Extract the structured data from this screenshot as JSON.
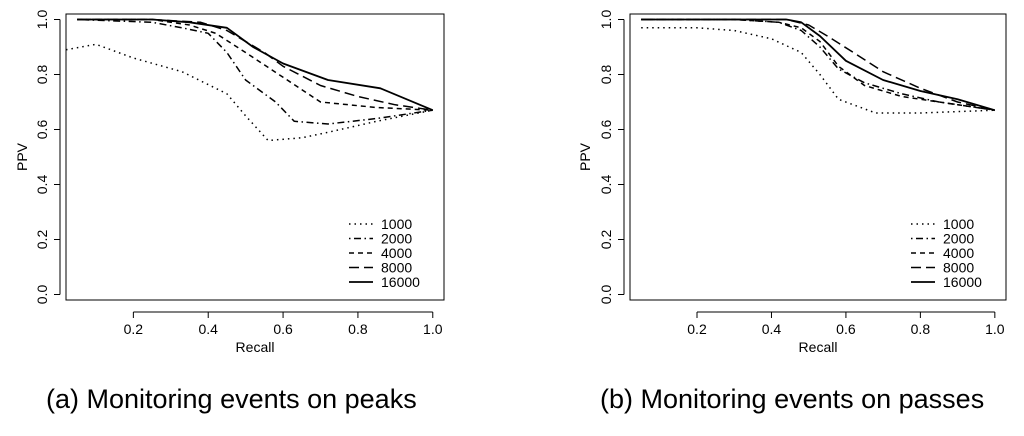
{
  "chart_data": [
    {
      "type": "line",
      "panel": "a",
      "caption": "(a) Monitoring events on peaks",
      "xlabel": "Recall",
      "ylabel": "PPV",
      "xlim": [
        0.02,
        1.03
      ],
      "ylim": [
        -0.02,
        1.02
      ],
      "xticks": [
        0.2,
        0.4,
        0.6,
        0.8,
        1.0
      ],
      "xtick_labels": [
        "0.2",
        "0.4",
        "0.6",
        "0.8",
        "1.0"
      ],
      "yticks": [
        0.0,
        0.2,
        0.4,
        0.6,
        0.8,
        1.0
      ],
      "ytick_labels": [
        "0.0",
        "0.2",
        "0.4",
        "0.6",
        "0.8",
        "1.0"
      ],
      "legend_position": "bottom-right",
      "series": [
        {
          "name": "1000",
          "style": "dotted",
          "x": [
            0.02,
            0.1,
            0.2,
            0.33,
            0.45,
            0.5,
            0.56,
            0.65,
            0.72,
            0.85,
            1.0
          ],
          "y": [
            0.89,
            0.91,
            0.86,
            0.81,
            0.73,
            0.65,
            0.56,
            0.57,
            0.59,
            0.63,
            0.67
          ]
        },
        {
          "name": "2000",
          "style": "dotdash",
          "x": [
            0.05,
            0.25,
            0.33,
            0.4,
            0.45,
            0.5,
            0.58,
            0.63,
            0.72,
            0.85,
            1.0
          ],
          "y": [
            1.0,
            0.99,
            0.97,
            0.95,
            0.88,
            0.78,
            0.7,
            0.63,
            0.62,
            0.64,
            0.67
          ]
        },
        {
          "name": "4000",
          "style": "dashed",
          "x": [
            0.05,
            0.25,
            0.35,
            0.42,
            0.5,
            0.6,
            0.7,
            0.85,
            1.0
          ],
          "y": [
            1.0,
            1.0,
            0.98,
            0.95,
            0.88,
            0.79,
            0.7,
            0.68,
            0.67
          ]
        },
        {
          "name": "8000",
          "style": "longdash",
          "x": [
            0.05,
            0.25,
            0.38,
            0.45,
            0.55,
            0.6,
            0.7,
            0.8,
            0.9,
            1.0
          ],
          "y": [
            1.0,
            1.0,
            0.99,
            0.96,
            0.88,
            0.83,
            0.76,
            0.72,
            0.69,
            0.67
          ]
        },
        {
          "name": "16000",
          "style": "solid",
          "x": [
            0.05,
            0.25,
            0.35,
            0.45,
            0.52,
            0.6,
            0.72,
            0.86,
            1.0
          ],
          "y": [
            1.0,
            1.0,
            0.99,
            0.97,
            0.9,
            0.84,
            0.78,
            0.75,
            0.67
          ]
        }
      ]
    },
    {
      "type": "line",
      "panel": "b",
      "caption": "(b) Monitoring events on passes",
      "xlabel": "Recall",
      "ylabel": "PPV",
      "xlim": [
        0.02,
        1.03
      ],
      "ylim": [
        -0.02,
        1.02
      ],
      "xticks": [
        0.2,
        0.4,
        0.6,
        0.8,
        1.0
      ],
      "xtick_labels": [
        "0.2",
        "0.4",
        "0.6",
        "0.8",
        "1.0"
      ],
      "yticks": [
        0.0,
        0.2,
        0.4,
        0.6,
        0.8,
        1.0
      ],
      "ytick_labels": [
        "0.0",
        "0.2",
        "0.4",
        "0.6",
        "0.8",
        "1.0"
      ],
      "legend_position": "bottom-right",
      "series": [
        {
          "name": "1000",
          "style": "dotted",
          "x": [
            0.05,
            0.2,
            0.3,
            0.4,
            0.48,
            0.53,
            0.58,
            0.68,
            0.8,
            1.0
          ],
          "y": [
            0.97,
            0.97,
            0.96,
            0.93,
            0.88,
            0.8,
            0.71,
            0.66,
            0.66,
            0.67
          ]
        },
        {
          "name": "2000",
          "style": "dotdash",
          "x": [
            0.05,
            0.3,
            0.42,
            0.48,
            0.53,
            0.58,
            0.65,
            0.75,
            0.85,
            1.0
          ],
          "y": [
            1.0,
            1.0,
            0.99,
            0.96,
            0.9,
            0.82,
            0.77,
            0.73,
            0.7,
            0.67
          ]
        },
        {
          "name": "4000",
          "style": "dashed",
          "x": [
            0.05,
            0.3,
            0.42,
            0.48,
            0.53,
            0.58,
            0.65,
            0.75,
            0.85,
            1.0
          ],
          "y": [
            1.0,
            1.0,
            0.99,
            0.97,
            0.92,
            0.83,
            0.76,
            0.72,
            0.7,
            0.67
          ]
        },
        {
          "name": "8000",
          "style": "longdash",
          "x": [
            0.05,
            0.3,
            0.44,
            0.5,
            0.55,
            0.62,
            0.7,
            0.8,
            0.9,
            1.0
          ],
          "y": [
            1.0,
            1.0,
            1.0,
            0.98,
            0.94,
            0.88,
            0.81,
            0.75,
            0.7,
            0.67
          ]
        },
        {
          "name": "16000",
          "style": "solid",
          "x": [
            0.05,
            0.3,
            0.44,
            0.48,
            0.53,
            0.6,
            0.7,
            0.8,
            0.9,
            1.0
          ],
          "y": [
            1.0,
            1.0,
            1.0,
            0.99,
            0.94,
            0.85,
            0.78,
            0.74,
            0.71,
            0.67
          ]
        }
      ]
    }
  ]
}
